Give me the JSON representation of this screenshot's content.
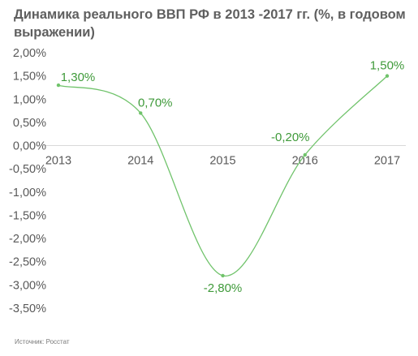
{
  "chart_data": {
    "type": "line",
    "title": "Динамика реального ВВП РФ в 2013 -2017 гг.  (%, в годовом выражении)",
    "categories": [
      "2013",
      "2014",
      "2015",
      "2016",
      "2017"
    ],
    "values": [
      1.3,
      0.7,
      -2.8,
      -0.2,
      1.5
    ],
    "data_labels": [
      "1,30%",
      "0,70%",
      "-2,80%",
      "-0,20%",
      "1,50%"
    ],
    "y_ticks": [
      2.0,
      1.5,
      1.0,
      0.5,
      0.0,
      -0.5,
      -1.0,
      -1.5,
      -2.0,
      -2.5,
      -3.0,
      -3.5
    ],
    "y_tick_labels": [
      "2,00%",
      "1,50%",
      "1,00%",
      "0,50%",
      "0,00%",
      "-0,50%",
      "-1,00%",
      "-1,50%",
      "-2,00%",
      "-2,50%",
      "-3,00%",
      "-3,50%"
    ],
    "ylim": [
      -3.5,
      2.0
    ],
    "xlabel": "",
    "ylabel": "",
    "smoothed": true,
    "grid": false,
    "legend": "none",
    "line_color": "#70c36b",
    "label_color": "#3f9a3a"
  },
  "source": "Источник: Росстат"
}
